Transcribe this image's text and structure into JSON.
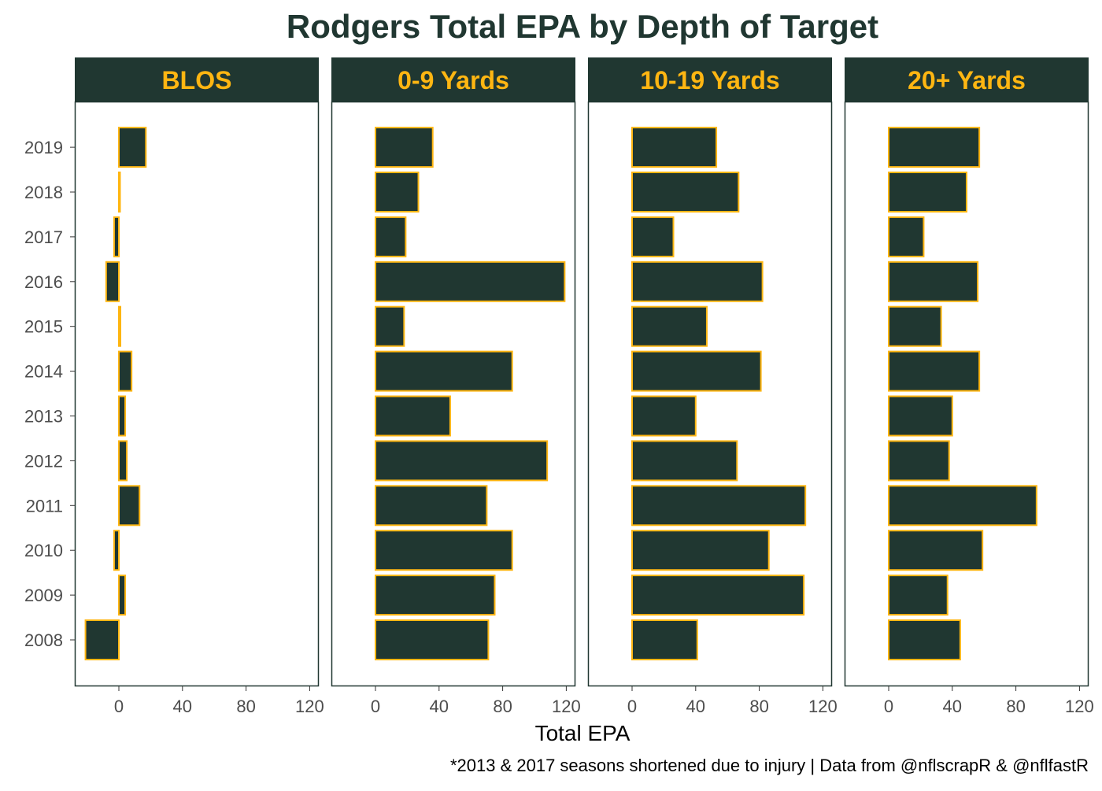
{
  "chart_data": {
    "type": "bar",
    "orientation": "horizontal",
    "title": "Rodgers Total EPA by Depth of Target",
    "xlabel": "Total EPA",
    "ylabel": "",
    "caption": "*2013 & 2017 seasons shortened due to injury | Data from @nflscrapR & @nflfastR",
    "categories": [
      "2008",
      "2009",
      "2010",
      "2011",
      "2012",
      "2013",
      "2014",
      "2015",
      "2016",
      "2017",
      "2018",
      "2019"
    ],
    "xlim": [
      -28,
      122
    ],
    "x_ticks": [
      0,
      40,
      80,
      120
    ],
    "grid": false,
    "colors": {
      "bar_fill": "#203731",
      "bar_outline": "#FFB612",
      "strip_fill": "#203731",
      "strip_text": "#FFB612",
      "title": "#203731"
    },
    "series": [
      {
        "name": "BLOS",
        "values": [
          -21,
          4,
          -3,
          13,
          5,
          4,
          8,
          1,
          -8,
          -3,
          0,
          17
        ]
      },
      {
        "name": "0-9 Yards",
        "values": [
          71,
          75,
          86,
          70,
          108,
          47,
          86,
          18,
          119,
          19,
          27,
          36
        ]
      },
      {
        "name": "10-19 Yards",
        "values": [
          41,
          108,
          86,
          109,
          66,
          40,
          81,
          47,
          82,
          26,
          67,
          53
        ]
      },
      {
        "name": "20+ Yards",
        "values": [
          45,
          37,
          59,
          93,
          38,
          40,
          57,
          33,
          56,
          22,
          49,
          57
        ]
      }
    ]
  }
}
